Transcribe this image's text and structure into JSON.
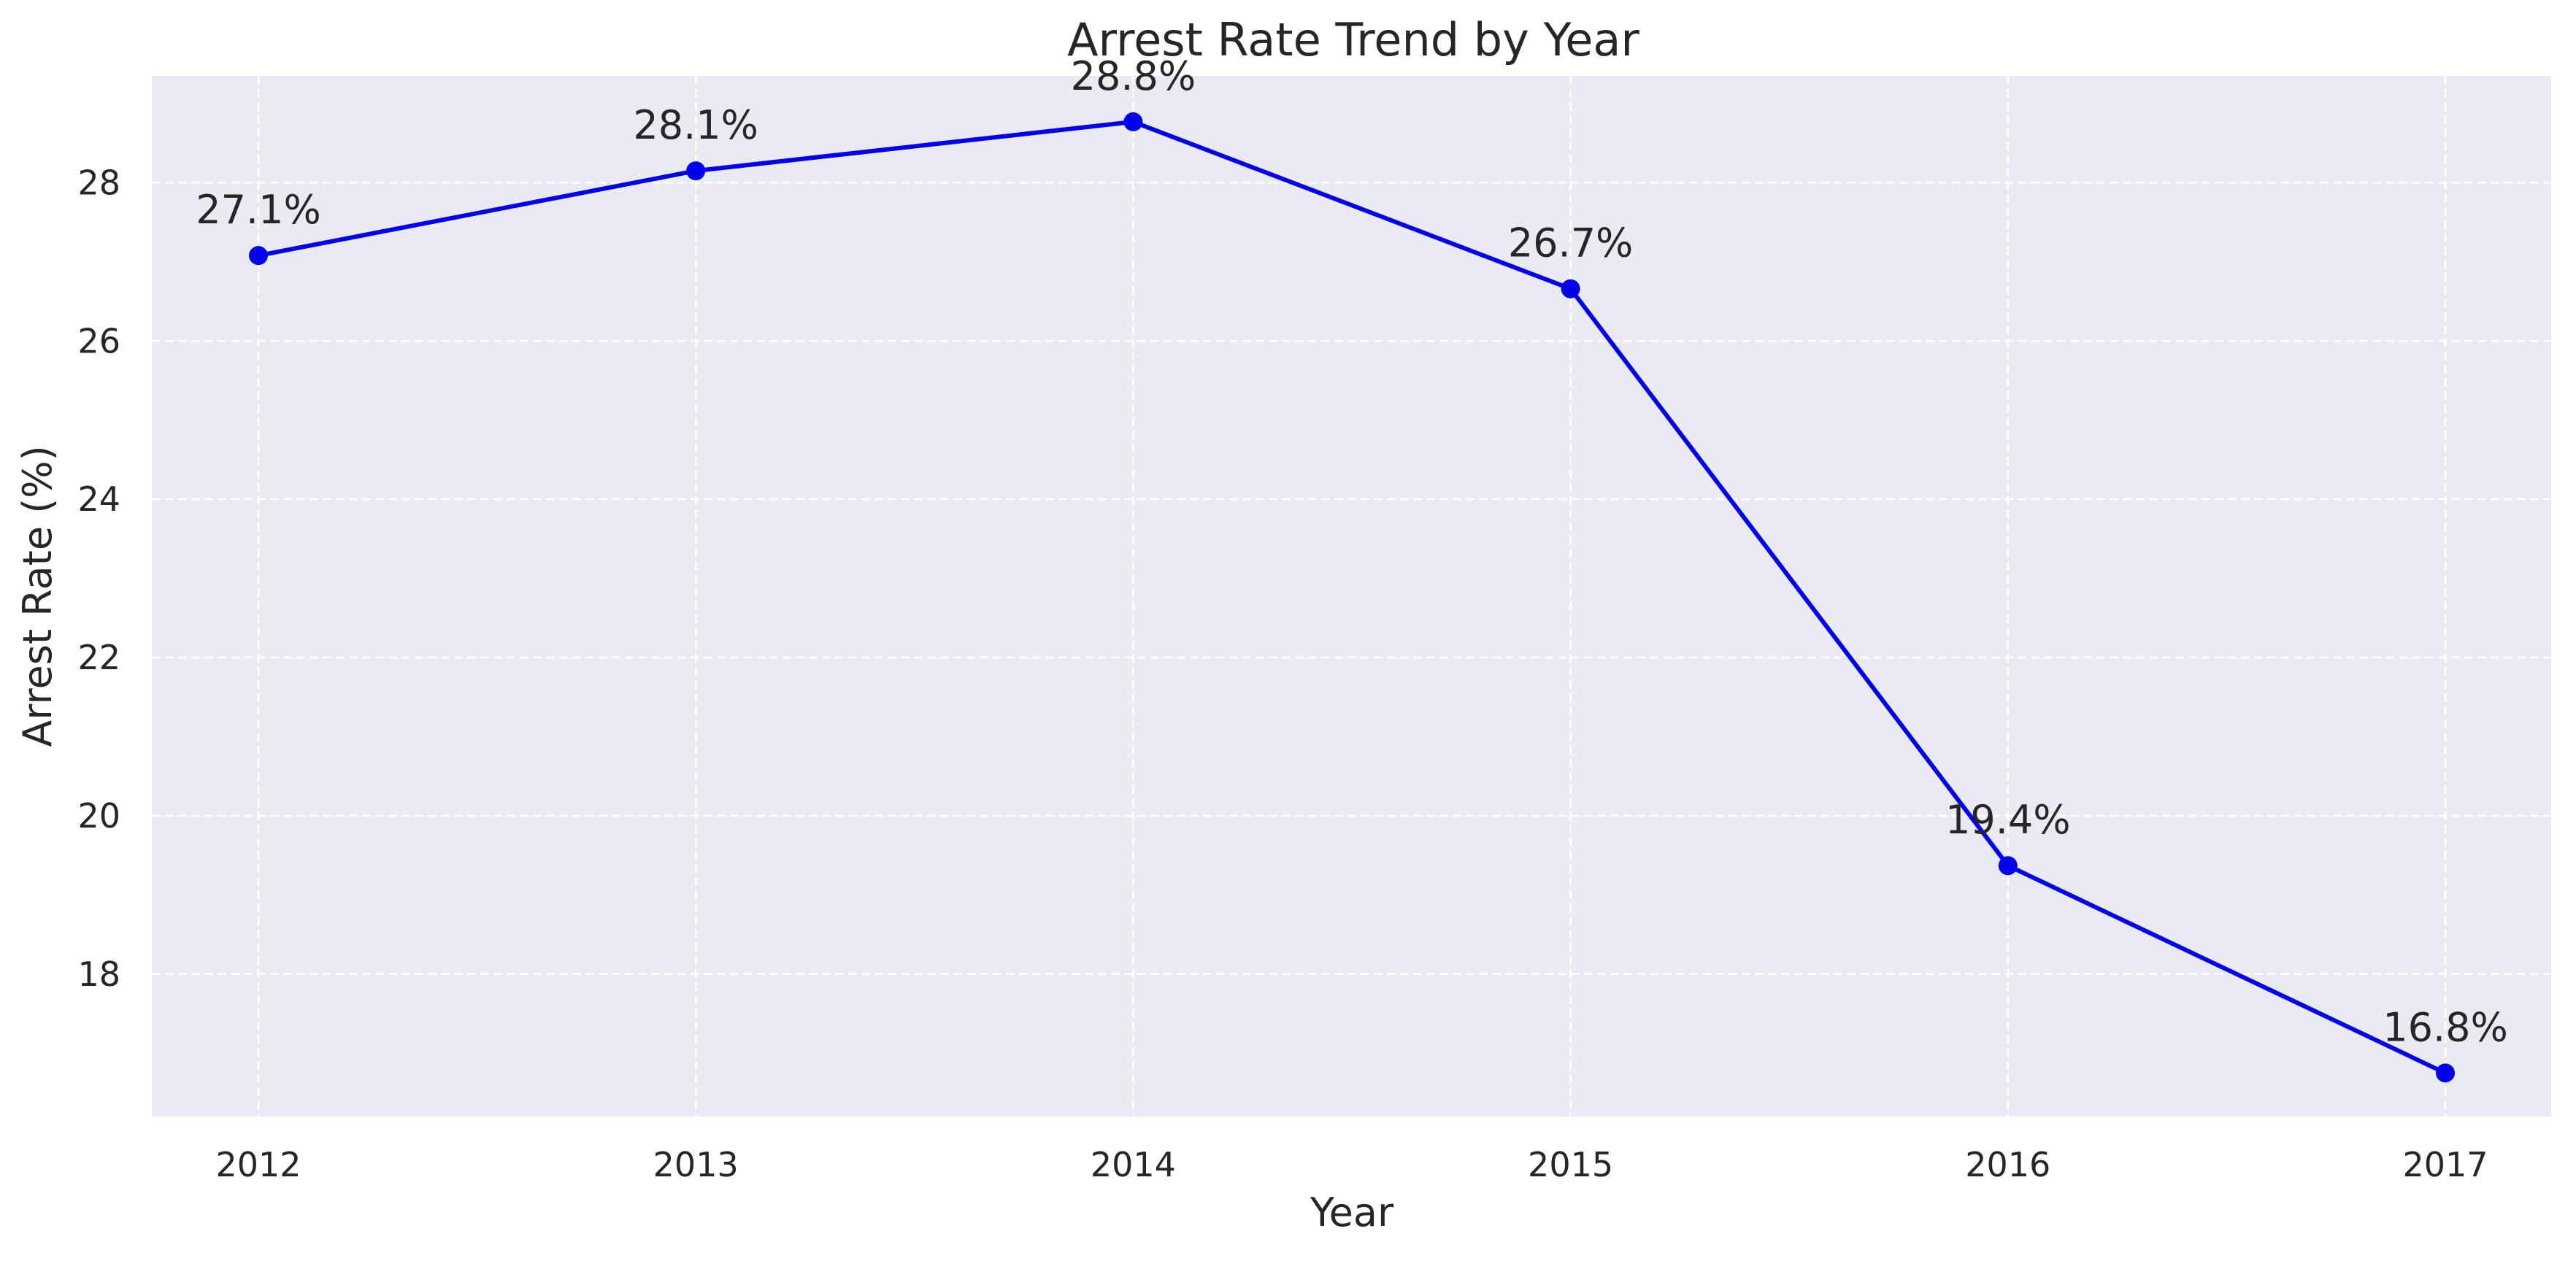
{
  "chart_data": {
    "type": "line",
    "title": "Arrest Rate Trend by Year",
    "xlabel": "Year",
    "ylabel": "Arrest Rate (%)",
    "categories": [
      "2012",
      "2013",
      "2014",
      "2015",
      "2016",
      "2017"
    ],
    "series": [
      {
        "values": [
          27.08,
          28.15,
          28.77,
          26.66,
          19.37,
          16.75
        ],
        "labels": [
          "27.1%",
          "28.1%",
          "28.8%",
          "26.7%",
          "19.4%",
          "16.8%"
        ],
        "color": "#0000ee",
        "marker": "circle"
      }
    ],
    "yticks": [
      "18",
      "20",
      "22",
      "24",
      "26",
      "28"
    ],
    "ylim": [
      16.2,
      29.35
    ],
    "grid": true,
    "grid_style": "dashed",
    "background_color": "#eaeaf2",
    "grid_color": "#ffffff"
  }
}
